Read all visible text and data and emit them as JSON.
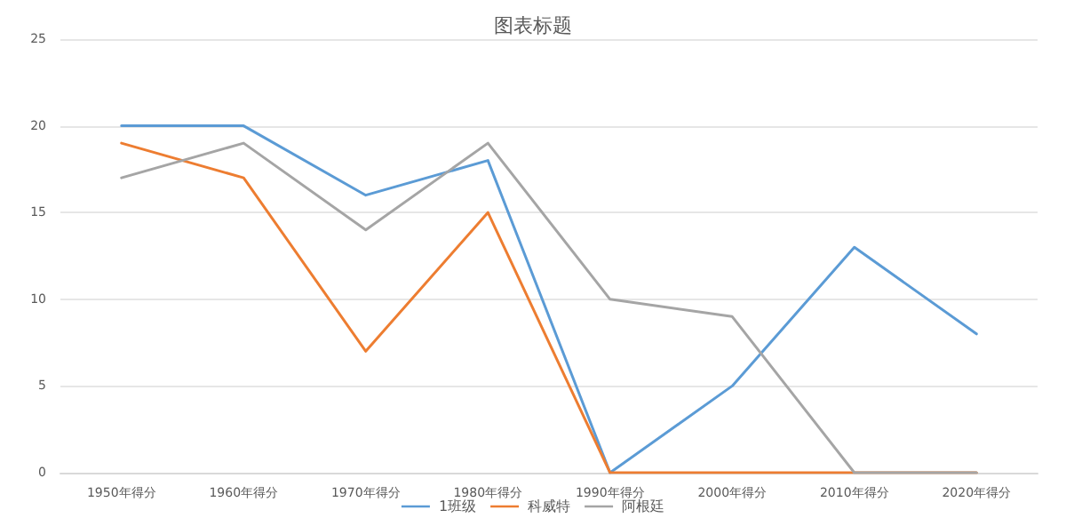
{
  "chart_data": {
    "type": "line",
    "title": "图表标题",
    "categories": [
      "1950年得分",
      "1960年得分",
      "1970年得分",
      "1980年得分",
      "1990年得分",
      "2000年得分",
      "2010年得分",
      "2020年得分"
    ],
    "series": [
      {
        "name": "1班级",
        "color": "#5b9bd5",
        "values": [
          20,
          20,
          16,
          18,
          0,
          5,
          13,
          8
        ]
      },
      {
        "name": "科威特",
        "color": "#ed7d31",
        "values": [
          19,
          17,
          7,
          15,
          0,
          0,
          0,
          0
        ]
      },
      {
        "name": "阿根廷",
        "color": "#a5a5a5",
        "values": [
          17,
          19,
          14,
          19,
          10,
          9,
          0,
          0
        ]
      }
    ],
    "ylim": [
      0,
      25
    ],
    "yticks": [
      0,
      5,
      10,
      15,
      20,
      25
    ],
    "grid": "y",
    "legend": "bottom",
    "marker": "none",
    "line_style": "solid"
  }
}
